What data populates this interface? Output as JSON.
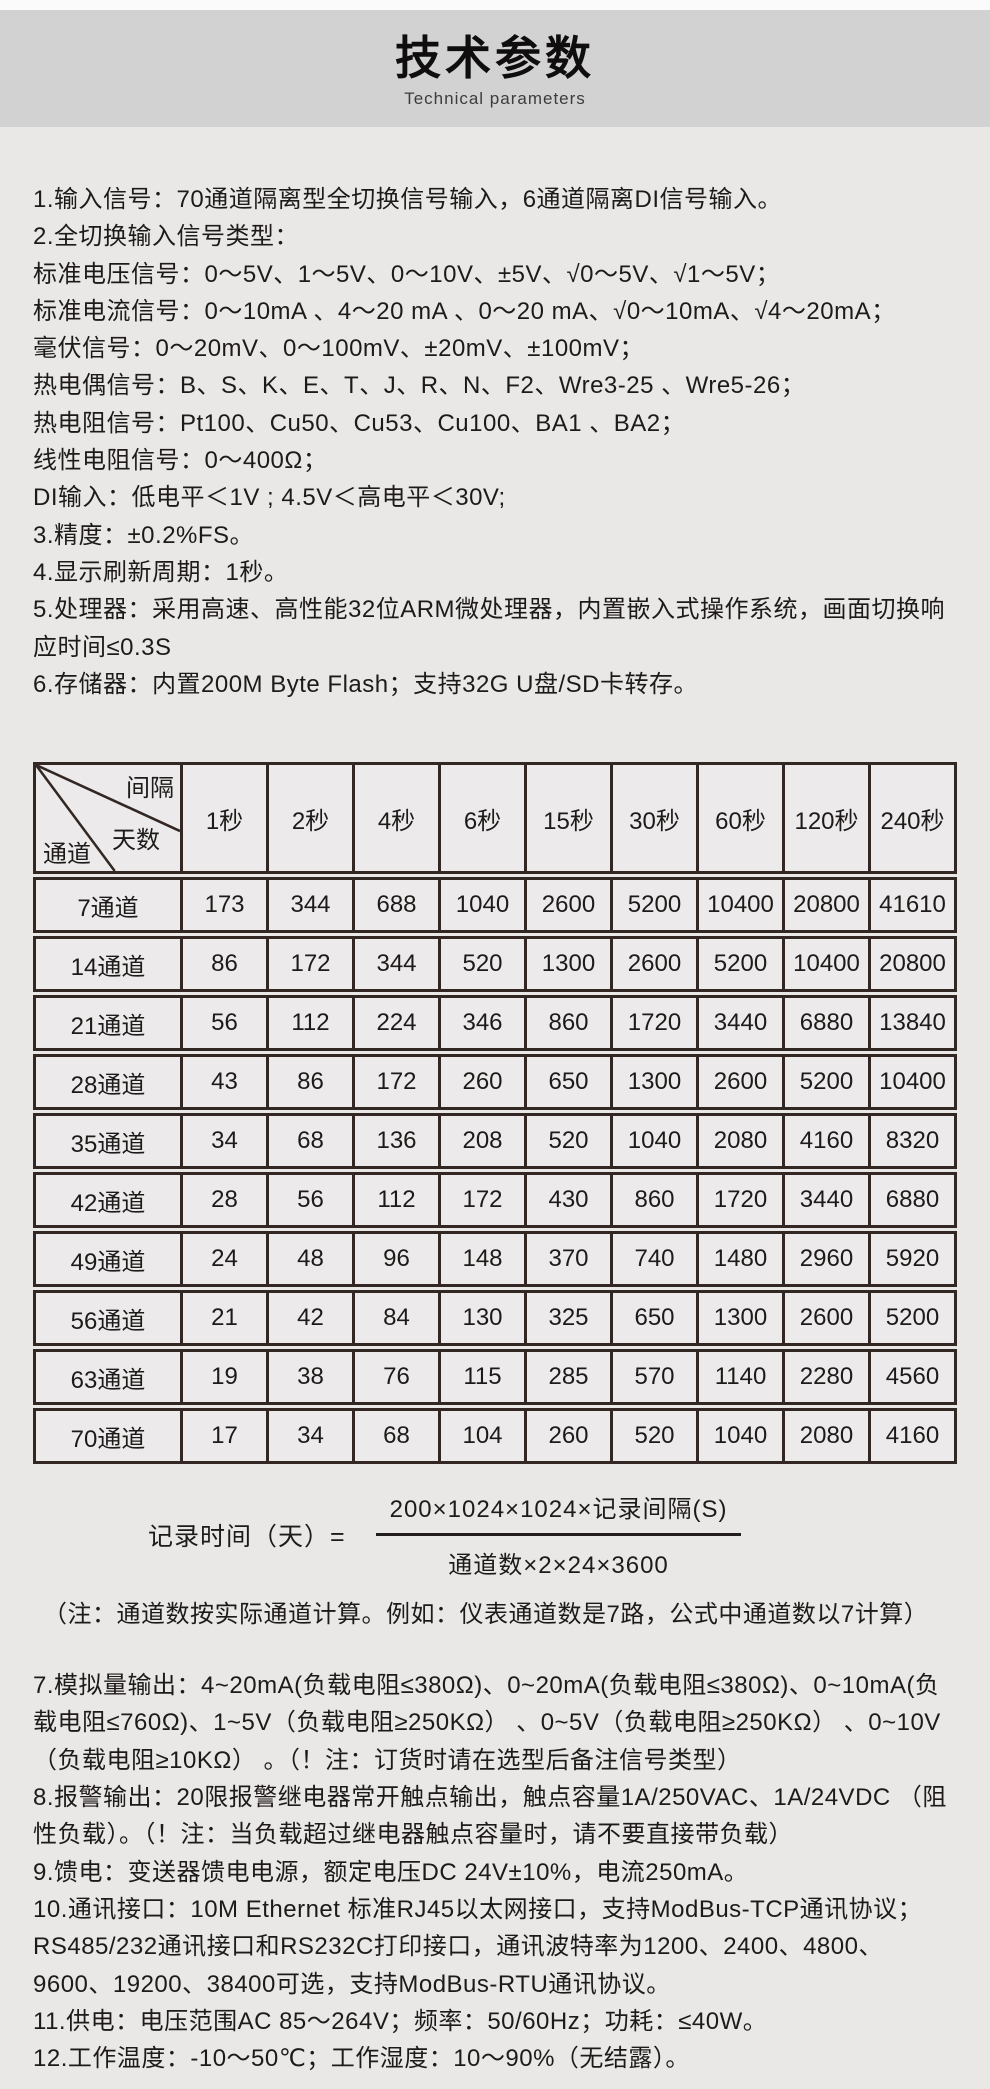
{
  "header": {
    "title": "技术参数",
    "subtitle": "Technical parameters"
  },
  "specs_top": [
    "1.输入信号：70通道隔离型全切换信号输入，6通道隔离DI信号输入。",
    "2.全切换输入信号类型：",
    "标准电压信号：0～5V、1～5V、0～10V、±5V、√0～5V、√1～5V；",
    "标准电流信号：0～10mA 、4～20 mA 、0～20 mA、√0～10mA、√4～20mA；",
    "毫伏信号：0～20mV、0～100mV、±20mV、±100mV；",
    "热电偶信号：B、S、K、E、T、J、R、N、F2、Wre3-25 、Wre5-26；",
    "热电阻信号：Pt100、Cu50、Cu53、Cu100、BA1 、BA2；",
    "线性电阻信号：0～400Ω；",
    "DI输入：低电平＜1V ; 4.5V＜高电平＜30V;",
    "3.精度：±0.2%FS。",
    "4.显示刷新周期：1秒。",
    "5.处理器：采用高速、高性能32位ARM微处理器，内置嵌入式操作系统，画面切换响应时间≤0.3S",
    "6.存储器：内置200M Byte Flash；支持32G U盘/SD卡转存。"
  ],
  "table": {
    "corner": {
      "interval": "间隔",
      "days": "天数",
      "channels": "通道"
    },
    "columns": [
      "1秒",
      "2秒",
      "4秒",
      "6秒",
      "15秒",
      "30秒",
      "60秒",
      "120秒",
      "240秒"
    ],
    "rows": [
      {
        "label": "7通道",
        "values": [
          173,
          344,
          688,
          1040,
          2600,
          5200,
          10400,
          20800,
          41610
        ]
      },
      {
        "label": "14通道",
        "values": [
          86,
          172,
          344,
          520,
          1300,
          2600,
          5200,
          10400,
          20800
        ]
      },
      {
        "label": "21通道",
        "values": [
          56,
          112,
          224,
          346,
          860,
          1720,
          3440,
          6880,
          13840
        ]
      },
      {
        "label": "28通道",
        "values": [
          43,
          86,
          172,
          260,
          650,
          1300,
          2600,
          5200,
          10400
        ]
      },
      {
        "label": "35通道",
        "values": [
          34,
          68,
          136,
          208,
          520,
          1040,
          2080,
          4160,
          8320
        ]
      },
      {
        "label": "42通道",
        "values": [
          28,
          56,
          112,
          172,
          430,
          860,
          1720,
          3440,
          6880
        ]
      },
      {
        "label": "49通道",
        "values": [
          24,
          48,
          96,
          148,
          370,
          740,
          1480,
          2960,
          5920
        ]
      },
      {
        "label": "56通道",
        "values": [
          21,
          42,
          84,
          130,
          325,
          650,
          1300,
          2600,
          5200
        ]
      },
      {
        "label": "63通道",
        "values": [
          19,
          38,
          76,
          115,
          285,
          570,
          1140,
          2280,
          4560
        ]
      },
      {
        "label": "70通道",
        "values": [
          17,
          34,
          68,
          104,
          260,
          520,
          1040,
          2080,
          4160
        ]
      }
    ]
  },
  "formula": {
    "lhs": "记录时间（天）=",
    "numerator": "200×1024×1024×记录间隔(S)",
    "denominator": "通道数×2×24×3600",
    "note": "（注：通道数按实际通道计算。例如：仪表通道数是7路，公式中通道数以7计算）"
  },
  "specs_bottom": [
    "7.模拟量输出：4~20mA(负载电阻≤380Ω)、0~20mA(负载电阻≤380Ω)、0~10mA(负载电阻≤760Ω)、1~5V（负载电阻≥250KΩ） 、0~5V（负载电阻≥250KΩ） 、0~10V（负载电阻≥10KΩ） 。（！注：订货时请在选型后备注信号类型）",
    "8.报警输出：20限报警继电器常开触点输出，触点容量1A/250VAC、1A/24VDC （阻性负载）。（！注：当负载超过继电器触点容量时，请不要直接带负载）",
    "9.馈电：变送器馈电电源，额定电压DC 24V±10%，电流250mA。",
    "10.通讯接口：10M  Ethernet 标准RJ45以太网接口，支持ModBus-TCP通讯协议；RS485/232通讯接口和RS232C打印接口，通讯波特率为1200、2400、4800、9600、19200、38400可选，支持ModBus-RTU通讯协议。",
    "11.供电：电压范围AC 85～264V；频率：50/60Hz；功耗：≤40W。",
    "12.工作温度：-10～50℃；工作湿度：10～90%（无结露）。"
  ],
  "colors": {
    "page_bg": "#e9e8e7",
    "band_bg": "#d3d2d2",
    "table_border": "#322723",
    "text": "#1e1a19"
  }
}
